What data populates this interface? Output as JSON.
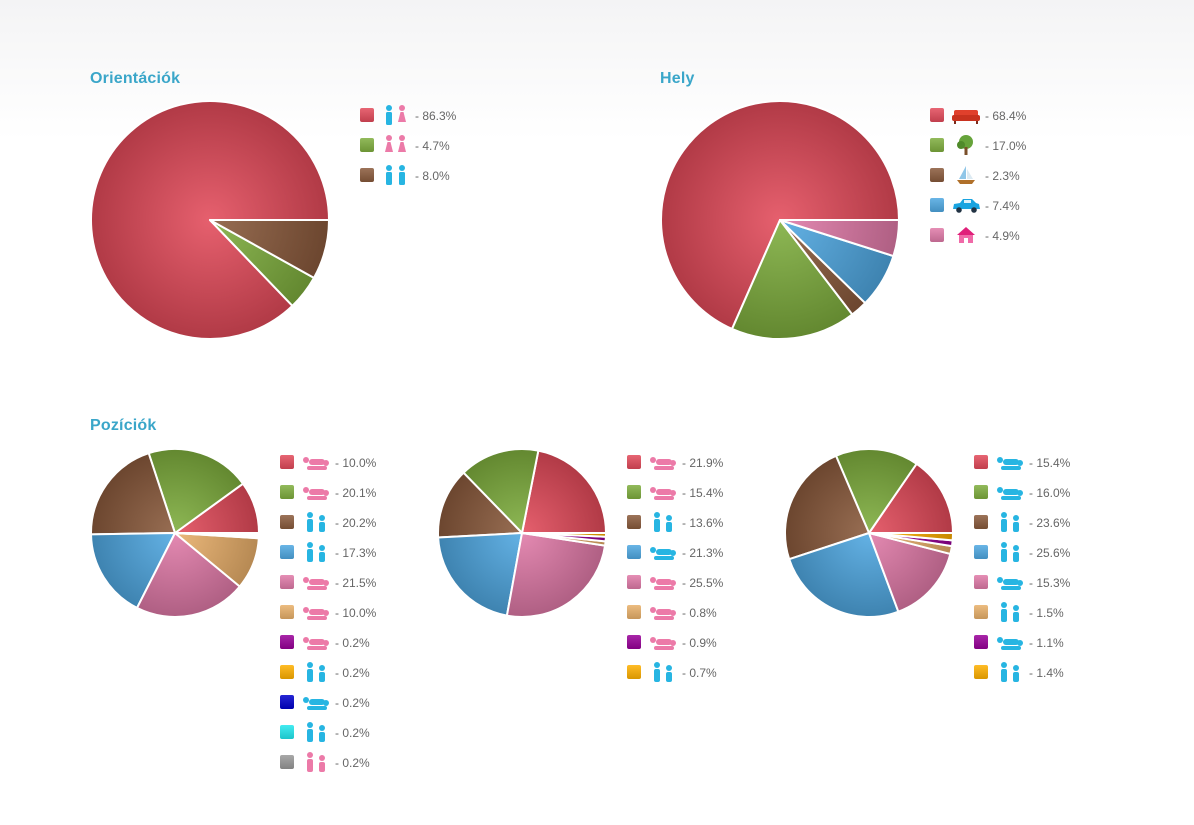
{
  "colors": {
    "red": "#e34a5a",
    "green": "#7fae3e",
    "brown": "#8a5a3c",
    "blue": "#4fa8e2",
    "pink": "#e07aa8",
    "tan": "#e9b06a",
    "purple": "#990099",
    "yellow": "#ffb000",
    "navy": "#0000cc",
    "cyan": "#22e8ee",
    "gray": "#999999",
    "title": "#3aa6c9",
    "icon_blue": "#27b5e2",
    "icon_pink": "#ec7aa8"
  },
  "chart_data": [
    {
      "id": "orientaciok",
      "type": "pie",
      "title": "Orientációk",
      "slices": [
        {
          "color": "red",
          "icon": "male-female-couple-icon",
          "value": 86.3,
          "label": "- 86.3%"
        },
        {
          "color": "green",
          "icon": "female-female-couple-icon",
          "value": 4.7,
          "label": "- 4.7%"
        },
        {
          "color": "brown",
          "icon": "male-male-couple-icon",
          "value": 8.0,
          "label": "- 8.0%"
        }
      ]
    },
    {
      "id": "hely",
      "type": "pie",
      "title": "Hely",
      "slices": [
        {
          "color": "red",
          "icon": "sofa-icon",
          "value": 68.4,
          "label": "- 68.4%"
        },
        {
          "color": "green",
          "icon": "tree-icon",
          "value": 17.0,
          "label": "- 17.0%"
        },
        {
          "color": "brown",
          "icon": "sailboat-icon",
          "value": 2.3,
          "label": "- 2.3%"
        },
        {
          "color": "blue",
          "icon": "car-icon",
          "value": 7.4,
          "label": "- 7.4%"
        },
        {
          "color": "pink",
          "icon": "house-icon",
          "value": 4.9,
          "label": "- 4.9%"
        }
      ]
    },
    {
      "id": "poziciok-1",
      "type": "pie",
      "title": "Pozíciók",
      "slices": [
        {
          "color": "red",
          "icon": "position-lying-icon",
          "value": 10.0,
          "label": "- 10.0%"
        },
        {
          "color": "green",
          "icon": "position-kneeling-icon",
          "value": 20.1,
          "label": "- 20.1%"
        },
        {
          "color": "brown",
          "icon": "position-bending-icon",
          "value": 20.2,
          "label": "- 20.2%"
        },
        {
          "color": "blue",
          "icon": "position-standing-icon",
          "value": 17.3,
          "label": "- 17.3%"
        },
        {
          "color": "pink",
          "icon": "position-side-icon",
          "value": 21.5,
          "label": "- 21.5%"
        },
        {
          "color": "tan",
          "icon": "position-reverse-icon",
          "value": 10.0,
          "label": "- 10.0%"
        },
        {
          "color": "purple",
          "icon": "position-seated-icon",
          "value": 0.2,
          "label": "- 0.2%"
        },
        {
          "color": "yellow",
          "icon": "position-facing-standing-icon",
          "value": 0.2,
          "label": "- 0.2%"
        },
        {
          "color": "navy",
          "icon": "position-leaning-icon",
          "value": 0.2,
          "label": "- 0.2%"
        },
        {
          "color": "cyan",
          "icon": "position-chair-icon",
          "value": 0.2,
          "label": "- 0.2%"
        },
        {
          "color": "gray",
          "icon": "position-table-icon",
          "value": 0.2,
          "label": "- 0.2%"
        }
      ]
    },
    {
      "id": "poziciok-2",
      "type": "pie",
      "title": "",
      "slices": [
        {
          "color": "red",
          "icon": "position-lying-icon",
          "value": 21.9,
          "label": "- 21.9%"
        },
        {
          "color": "green",
          "icon": "position-kneeling-icon",
          "value": 15.4,
          "label": "- 15.4%"
        },
        {
          "color": "brown",
          "icon": "position-bending-icon",
          "value": 13.6,
          "label": "- 13.6%"
        },
        {
          "color": "blue",
          "icon": "position-flat-icon",
          "value": 21.3,
          "label": "- 21.3%"
        },
        {
          "color": "pink",
          "icon": "position-side-icon",
          "value": 25.5,
          "label": "- 25.5%"
        },
        {
          "color": "tan",
          "icon": "position-scissor-icon",
          "value": 0.8,
          "label": "- 0.8%"
        },
        {
          "color": "purple",
          "icon": "position-triangle-icon",
          "value": 0.9,
          "label": "- 0.9%"
        },
        {
          "color": "yellow",
          "icon": "position-facing-standing-icon",
          "value": 0.7,
          "label": "- 0.7%"
        }
      ]
    },
    {
      "id": "poziciok-3",
      "type": "pie",
      "title": "",
      "slices": [
        {
          "color": "red",
          "icon": "position-lying-icon",
          "value": 15.4,
          "label": "- 15.4%"
        },
        {
          "color": "green",
          "icon": "position-kneeling-icon",
          "value": 16.0,
          "label": "- 16.0%"
        },
        {
          "color": "brown",
          "icon": "position-bending-icon",
          "value": 23.6,
          "label": "- 23.6%"
        },
        {
          "color": "blue",
          "icon": "position-standing-icon",
          "value": 25.6,
          "label": "- 25.6%"
        },
        {
          "color": "pink",
          "icon": "position-side-icon",
          "value": 15.3,
          "label": "- 15.3%"
        },
        {
          "color": "tan",
          "icon": "position-group-icon",
          "value": 1.5,
          "label": "- 1.5%"
        },
        {
          "color": "purple",
          "icon": "position-triangle-icon",
          "value": 1.1,
          "label": "- 1.1%"
        },
        {
          "color": "yellow",
          "icon": "position-facing-standing-icon",
          "value": 1.4,
          "label": "- 1.4%"
        }
      ]
    }
  ]
}
